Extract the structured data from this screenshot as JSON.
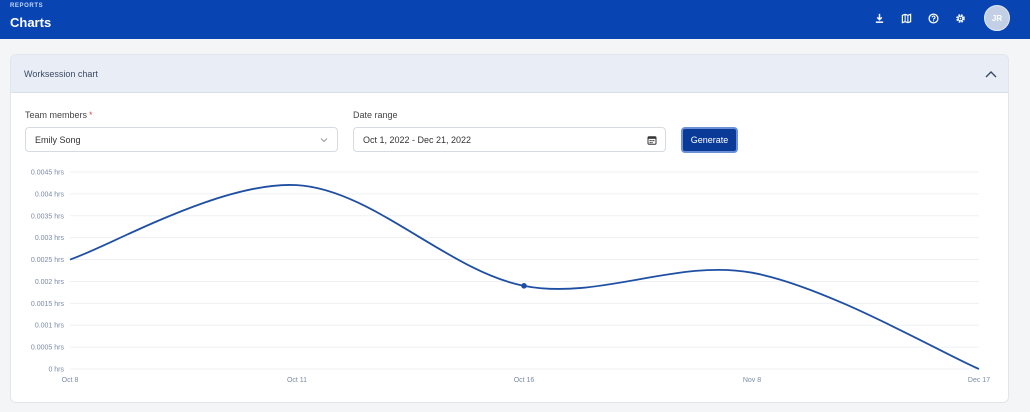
{
  "header": {
    "eyebrow": "REPORTS",
    "title": "Charts",
    "icons": [
      "download-icon",
      "map-icon",
      "help-icon",
      "settings-icon"
    ],
    "avatar_initials": "JR"
  },
  "card": {
    "title": "Worksession chart"
  },
  "form": {
    "team_members_label": "Team members",
    "team_members_required": "*",
    "team_member_value": "Emily Song",
    "date_range_label": "Date range",
    "date_range_value": "Oct 1, 2022 - Dec 21, 2022",
    "generate_label": "Generate"
  },
  "colors": {
    "brand": "#0845b3",
    "line": "#1f4fa3",
    "button": "#0a3a98"
  },
  "chart_data": {
    "type": "line",
    "x": [
      "Oct 8",
      "Oct 11",
      "Oct 16",
      "Nov 8",
      "Dec 17"
    ],
    "series": [
      {
        "values": [
          0.0025,
          0.0042,
          0.0019,
          0.0022,
          0
        ]
      }
    ],
    "highlighted_point": "Oct 16",
    "yticks": [
      "0 hrs",
      "0.0005 hrs",
      "0.001 hrs",
      "0.0015 hrs",
      "0.002 hrs",
      "0.0025 hrs",
      "0.003 hrs",
      "0.0035 hrs",
      "0.004 hrs",
      "0.0045 hrs"
    ],
    "ylim": [
      0,
      0.0045
    ],
    "grid": true
  }
}
